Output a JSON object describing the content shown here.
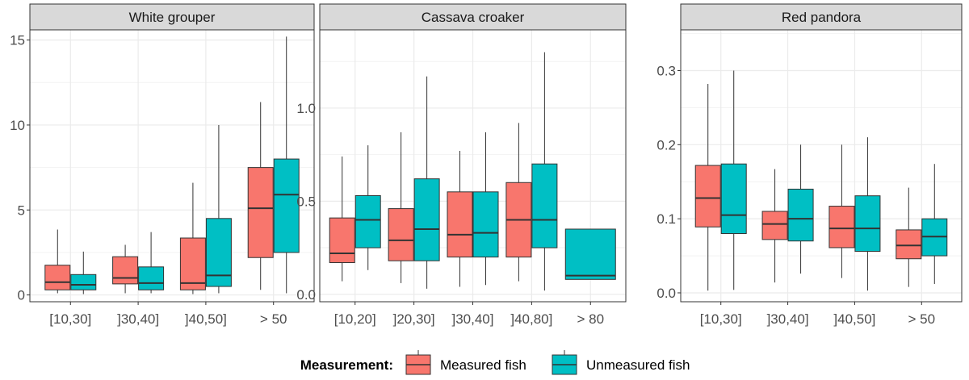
{
  "chart_data": {
    "type": "boxplot",
    "legend": {
      "title": "Measurement:",
      "position": "bottom",
      "entries": [
        {
          "name": "Measured fish",
          "color": "#F8766D"
        },
        {
          "name": "Unmeasured fish",
          "color": "#00BFC4"
        }
      ]
    },
    "grid": true,
    "panels": [
      {
        "title": "White grouper",
        "categories": [
          "[10,30]",
          "]30,40]",
          "]40,50]",
          "> 50"
        ],
        "yticks": [
          0,
          5,
          10,
          15
        ],
        "ylim": [
          -0.4,
          15.6
        ],
        "series": [
          {
            "name": "Measured fish",
            "boxes": [
              {
                "min": 0.1,
                "q1": 0.3,
                "median": 0.75,
                "q3": 1.75,
                "max": 3.85
              },
              {
                "min": 0.1,
                "q1": 0.65,
                "median": 1.0,
                "q3": 2.25,
                "max": 2.95
              },
              {
                "min": 0.05,
                "q1": 0.3,
                "median": 0.7,
                "q3": 3.35,
                "max": 6.6
              },
              {
                "min": 0.3,
                "q1": 2.2,
                "median": 5.1,
                "q3": 7.5,
                "max": 11.35
              }
            ]
          },
          {
            "name": "Unmeasured fish",
            "boxes": [
              {
                "min": 0.05,
                "q1": 0.3,
                "median": 0.6,
                "q3": 1.2,
                "max": 2.55
              },
              {
                "min": 0.1,
                "q1": 0.3,
                "median": 0.7,
                "q3": 1.65,
                "max": 3.7
              },
              {
                "min": 0.1,
                "q1": 0.5,
                "median": 1.15,
                "q3": 4.5,
                "max": 10.0
              },
              {
                "min": 0.1,
                "q1": 2.5,
                "median": 5.9,
                "q3": 8.0,
                "max": 15.2
              }
            ]
          }
        ]
      },
      {
        "title": "Cassava croaker",
        "categories": [
          "[10,20]",
          "]20,30]",
          "]30,40]",
          "]40,80]",
          "> 80"
        ],
        "yticks": [
          0.0,
          0.5,
          1.0
        ],
        "yticklabels": [
          "0.0",
          "0.5",
          "1.0"
        ],
        "ylim": [
          -0.04,
          1.42
        ],
        "series": [
          {
            "name": "Measured fish",
            "boxes": [
              {
                "min": 0.07,
                "q1": 0.17,
                "median": 0.22,
                "q3": 0.41,
                "max": 0.74
              },
              {
                "min": 0.06,
                "q1": 0.18,
                "median": 0.29,
                "q3": 0.46,
                "max": 0.87
              },
              {
                "min": 0.04,
                "q1": 0.2,
                "median": 0.32,
                "q3": 0.55,
                "max": 0.77
              },
              {
                "min": 0.07,
                "q1": 0.2,
                "median": 0.4,
                "q3": 0.6,
                "max": 0.92
              },
              null
            ]
          },
          {
            "name": "Unmeasured fish",
            "boxes": [
              {
                "min": 0.13,
                "q1": 0.25,
                "median": 0.4,
                "q3": 0.53,
                "max": 0.8
              },
              {
                "min": 0.03,
                "q1": 0.18,
                "median": 0.35,
                "q3": 0.62,
                "max": 1.17
              },
              {
                "min": 0.05,
                "q1": 0.2,
                "median": 0.33,
                "q3": 0.55,
                "max": 0.87
              },
              {
                "min": 0.02,
                "q1": 0.25,
                "median": 0.4,
                "q3": 0.7,
                "max": 1.3
              },
              {
                "min": 0.08,
                "q1": 0.08,
                "median": 0.1,
                "q3": 0.35,
                "max": 0.35
              }
            ]
          }
        ]
      },
      {
        "title": "Red pandora",
        "categories": [
          "[10,30]",
          "]30,40]",
          "]40,50]",
          "> 50"
        ],
        "yticks": [
          0.0,
          0.1,
          0.2,
          0.3
        ],
        "yticklabels": [
          "0.0",
          "0.1",
          "0.2",
          "0.3"
        ],
        "ylim": [
          -0.012,
          0.355
        ],
        "series": [
          {
            "name": "Measured fish",
            "boxes": [
              {
                "min": 0.003,
                "q1": 0.089,
                "median": 0.128,
                "q3": 0.172,
                "max": 0.282
              },
              {
                "min": 0.014,
                "q1": 0.072,
                "median": 0.093,
                "q3": 0.11,
                "max": 0.167
              },
              {
                "min": 0.02,
                "q1": 0.061,
                "median": 0.087,
                "q3": 0.117,
                "max": 0.2
              },
              {
                "min": 0.008,
                "q1": 0.046,
                "median": 0.064,
                "q3": 0.085,
                "max": 0.142
              }
            ]
          },
          {
            "name": "Unmeasured fish",
            "boxes": [
              {
                "min": 0.004,
                "q1": 0.08,
                "median": 0.105,
                "q3": 0.174,
                "max": 0.3
              },
              {
                "min": 0.026,
                "q1": 0.07,
                "median": 0.1,
                "q3": 0.14,
                "max": 0.2
              },
              {
                "min": 0.003,
                "q1": 0.056,
                "median": 0.087,
                "q3": 0.131,
                "max": 0.21
              },
              {
                "min": 0.012,
                "q1": 0.05,
                "median": 0.076,
                "q3": 0.1,
                "max": 0.174
              }
            ]
          }
        ]
      }
    ]
  }
}
